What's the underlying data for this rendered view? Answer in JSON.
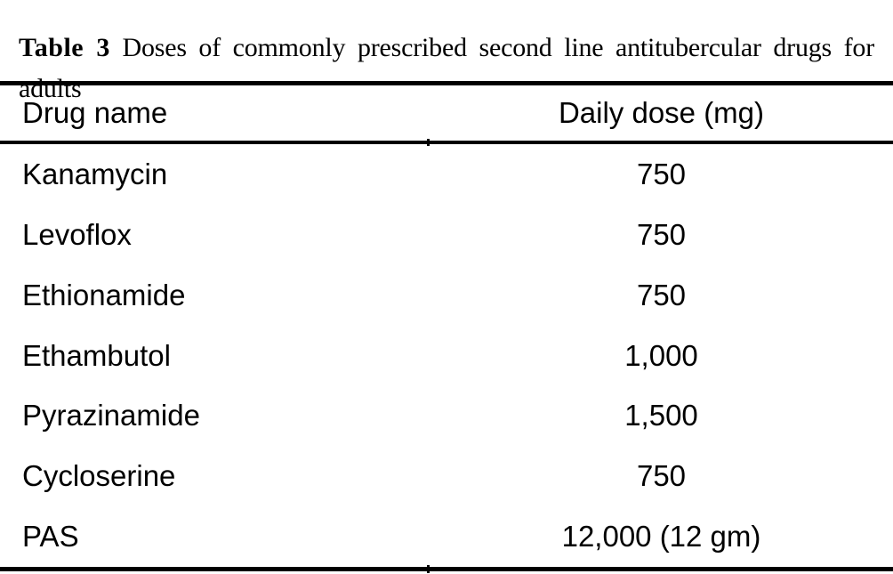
{
  "caption": {
    "label": "Table 3",
    "text": " Doses of commonly prescribed second line antitubercular drugs for adults"
  },
  "table": {
    "header": {
      "drug": "Drug name",
      "dose": "Daily dose (mg)"
    },
    "rows": [
      {
        "drug": "Kanamycin",
        "dose": "750"
      },
      {
        "drug": "Levoflox",
        "dose": "750"
      },
      {
        "drug": "Ethionamide",
        "dose": "750"
      },
      {
        "drug": "Ethambutol",
        "dose": "1,000"
      },
      {
        "drug": "Pyrazinamide",
        "dose": "1,500"
      },
      {
        "drug": "Cycloserine",
        "dose": "750"
      },
      {
        "drug": "PAS",
        "dose": "12,000 (12 gm)"
      }
    ]
  },
  "colors": {
    "text": "#000000",
    "background": "#ffffff",
    "rule": "#000000"
  }
}
